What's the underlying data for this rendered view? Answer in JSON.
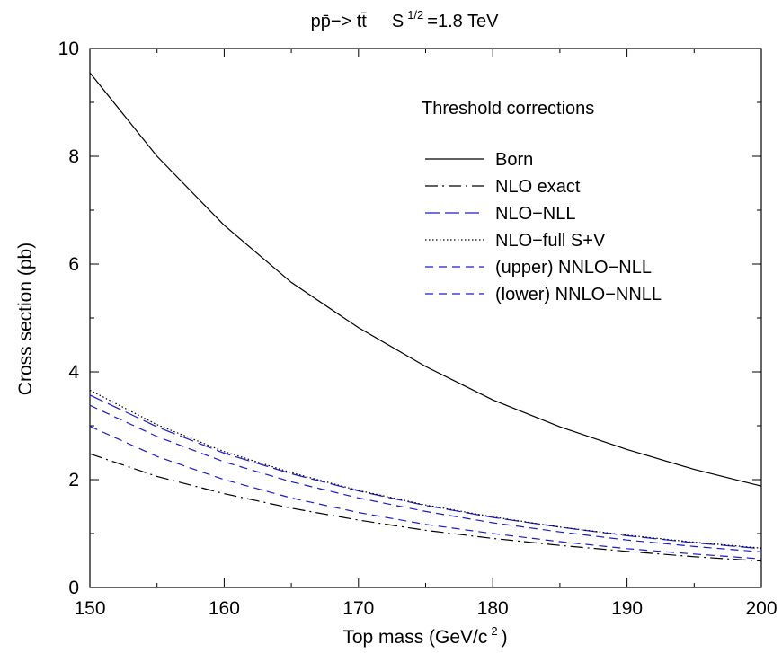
{
  "chart_data": {
    "type": "line",
    "title": {
      "process": "pp̄−> tt̄",
      "energy_prefix": "S",
      "energy_exponent": "1/2",
      "energy_value": "=1.8 TeV"
    },
    "xlabel": {
      "main": "Top mass (GeV/c",
      "exponent": "2",
      "close": ")"
    },
    "ylabel": "Cross section (pb)",
    "xlim": [
      150,
      200
    ],
    "ylim": [
      0,
      10
    ],
    "xticks": [
      150,
      160,
      170,
      180,
      190,
      200
    ],
    "yticks": [
      0,
      2,
      4,
      6,
      8,
      10
    ],
    "grid": false,
    "legend_title": "Threshold corrections",
    "legend_position": "top-right",
    "x": [
      150,
      155,
      160,
      165,
      170,
      175,
      180,
      185,
      190,
      195,
      200
    ],
    "series": [
      {
        "name": "Born",
        "color": "#000000",
        "dash": "solid",
        "values": [
          9.55,
          8.0,
          6.72,
          5.66,
          4.82,
          4.1,
          3.48,
          2.98,
          2.56,
          2.19,
          1.88
        ]
      },
      {
        "name": "NLO exact",
        "color": "#000000",
        "dash": "dashdot",
        "values": [
          2.48,
          2.06,
          1.74,
          1.47,
          1.25,
          1.06,
          0.91,
          0.78,
          0.67,
          0.57,
          0.49
        ]
      },
      {
        "name": "NLO−NLL",
        "color": "#1a1acc",
        "dash": "longdash",
        "values": [
          3.57,
          2.98,
          2.49,
          2.11,
          1.79,
          1.52,
          1.3,
          1.12,
          0.96,
          0.83,
          0.72
        ]
      },
      {
        "name": "NLO−full S+V",
        "color": "#000000",
        "dash": "dotted",
        "values": [
          3.66,
          3.02,
          2.52,
          2.13,
          1.8,
          1.53,
          1.31,
          1.12,
          0.97,
          0.84,
          0.73
        ]
      },
      {
        "name": "(upper) NNLO−NLL",
        "color": "#1a1acc",
        "dash": "dashed",
        "values": [
          3.38,
          2.8,
          2.33,
          1.96,
          1.66,
          1.41,
          1.2,
          1.03,
          0.88,
          0.76,
          0.66
        ]
      },
      {
        "name": "(lower) NNLO−NNLL",
        "color": "#1a1acc",
        "dash": "dashed",
        "values": [
          2.99,
          2.43,
          2.0,
          1.66,
          1.39,
          1.17,
          1.0,
          0.85,
          0.72,
          0.62,
          0.53
        ]
      }
    ]
  }
}
